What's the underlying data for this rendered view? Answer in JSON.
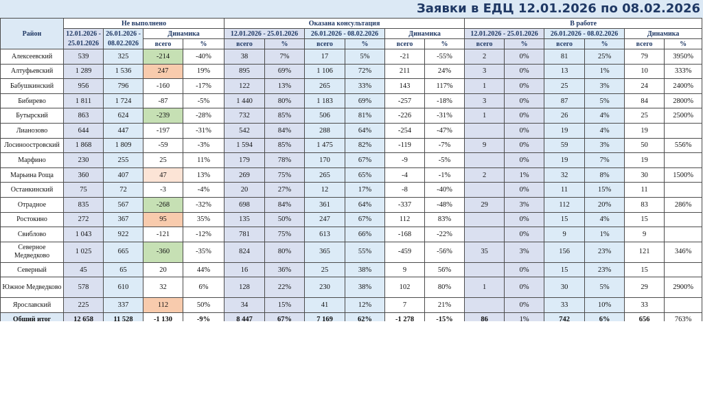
{
  "title": "Заявки в ЕДЦ 12.01.2026 по 08.02.2026",
  "header": {
    "district": "Район",
    "groups": [
      "Не выполнено",
      "Оказана консультация",
      "В работе"
    ],
    "period1": "12.01.2026 - 25.01.2026",
    "period2": "26.01.2026 - 08.02.2026",
    "dynamics": "Динамика",
    "total_col": "всего",
    "pct_col": "%"
  },
  "colors": {
    "green": "#c6e0b4",
    "orange": "#f8cbad",
    "peach": "#fce4d6",
    "lavender": "#dae0f0",
    "lightblue": "#dcebf7"
  },
  "rows": [
    {
      "name": "Алексеевский",
      "v": [
        "539",
        "325",
        "-214",
        "-40%",
        "38",
        "7%",
        "17",
        "5%",
        "-21",
        "-55%",
        "2",
        "0%",
        "81",
        "25%",
        "79",
        "3950%"
      ],
      "hl": "green"
    },
    {
      "name": "Алтуфьевский",
      "v": [
        "1 289",
        "1 536",
        "247",
        "19%",
        "895",
        "69%",
        "1 106",
        "72%",
        "211",
        "24%",
        "3",
        "0%",
        "13",
        "1%",
        "10",
        "333%"
      ],
      "hl": "orange"
    },
    {
      "name": "Бабушкинский",
      "v": [
        "956",
        "796",
        "-160",
        "-17%",
        "122",
        "13%",
        "265",
        "33%",
        "143",
        "117%",
        "1",
        "0%",
        "25",
        "3%",
        "24",
        "2400%"
      ],
      "hl": ""
    },
    {
      "name": "Бибирево",
      "v": [
        "1 811",
        "1 724",
        "-87",
        "-5%",
        "1 440",
        "80%",
        "1 183",
        "69%",
        "-257",
        "-18%",
        "3",
        "0%",
        "87",
        "5%",
        "84",
        "2800%"
      ],
      "hl": ""
    },
    {
      "name": "Бутырский",
      "v": [
        "863",
        "624",
        "-239",
        "-28%",
        "732",
        "85%",
        "506",
        "81%",
        "-226",
        "-31%",
        "1",
        "0%",
        "26",
        "4%",
        "25",
        "2500%"
      ],
      "hl": "green"
    },
    {
      "name": "Лианозово",
      "v": [
        "644",
        "447",
        "-197",
        "-31%",
        "542",
        "84%",
        "288",
        "64%",
        "-254",
        "-47%",
        "",
        "0%",
        "19",
        "4%",
        "19",
        ""
      ],
      "hl": ""
    },
    {
      "name": "Лосиноостровский",
      "v": [
        "1 868",
        "1 809",
        "-59",
        "-3%",
        "1 594",
        "85%",
        "1 475",
        "82%",
        "-119",
        "-7%",
        "9",
        "0%",
        "59",
        "3%",
        "50",
        "556%"
      ],
      "hl": ""
    },
    {
      "name": "Марфино",
      "v": [
        "230",
        "255",
        "25",
        "11%",
        "179",
        "78%",
        "170",
        "67%",
        "-9",
        "-5%",
        "",
        "0%",
        "19",
        "7%",
        "19",
        ""
      ],
      "hl": ""
    },
    {
      "name": "Марьина Роща",
      "v": [
        "360",
        "407",
        "47",
        "13%",
        "269",
        "75%",
        "265",
        "65%",
        "-4",
        "-1%",
        "2",
        "1%",
        "32",
        "8%",
        "30",
        "1500%"
      ],
      "hl": "peach"
    },
    {
      "name": "Останкинский",
      "v": [
        "75",
        "72",
        "-3",
        "-4%",
        "20",
        "27%",
        "12",
        "17%",
        "-8",
        "-40%",
        "",
        "0%",
        "11",
        "15%",
        "11",
        ""
      ],
      "hl": ""
    },
    {
      "name": "Отрадное",
      "v": [
        "835",
        "567",
        "-268",
        "-32%",
        "698",
        "84%",
        "361",
        "64%",
        "-337",
        "-48%",
        "29",
        "3%",
        "112",
        "20%",
        "83",
        "286%"
      ],
      "hl": "green"
    },
    {
      "name": "Ростокино",
      "v": [
        "272",
        "367",
        "95",
        "35%",
        "135",
        "50%",
        "247",
        "67%",
        "112",
        "83%",
        "",
        "0%",
        "15",
        "4%",
        "15",
        ""
      ],
      "hl": "orange"
    },
    {
      "name": "Свиблово",
      "v": [
        "1 043",
        "922",
        "-121",
        "-12%",
        "781",
        "75%",
        "613",
        "66%",
        "-168",
        "-22%",
        "",
        "0%",
        "9",
        "1%",
        "9",
        ""
      ],
      "hl": ""
    },
    {
      "name": "Северное Медведково",
      "v": [
        "1 025",
        "665",
        "-360",
        "-35%",
        "824",
        "80%",
        "365",
        "55%",
        "-459",
        "-56%",
        "35",
        "3%",
        "156",
        "23%",
        "121",
        "346%"
      ],
      "hl": "green",
      "tall": true
    },
    {
      "name": "Северный",
      "v": [
        "45",
        "65",
        "20",
        "44%",
        "16",
        "36%",
        "25",
        "38%",
        "9",
        "56%",
        "",
        "0%",
        "15",
        "23%",
        "15",
        ""
      ],
      "hl": ""
    },
    {
      "name": "Южное Медведково",
      "v": [
        "578",
        "610",
        "32",
        "6%",
        "128",
        "22%",
        "230",
        "38%",
        "102",
        "80%",
        "1",
        "0%",
        "30",
        "5%",
        "29",
        "2900%"
      ],
      "hl": "",
      "tall": true
    },
    {
      "name": "Ярославский",
      "v": [
        "225",
        "337",
        "112",
        "50%",
        "34",
        "15%",
        "41",
        "12%",
        "7",
        "21%",
        "",
        "0%",
        "33",
        "10%",
        "33",
        ""
      ],
      "hl": "orange"
    }
  ],
  "total": {
    "name": "Общий итог",
    "v": [
      "12 658",
      "11 528",
      "-1 130",
      "-9%",
      "8 447",
      "67%",
      "7 169",
      "62%",
      "-1 278",
      "-15%",
      "86",
      "1%",
      "742",
      "6%",
      "656",
      "763%"
    ]
  }
}
